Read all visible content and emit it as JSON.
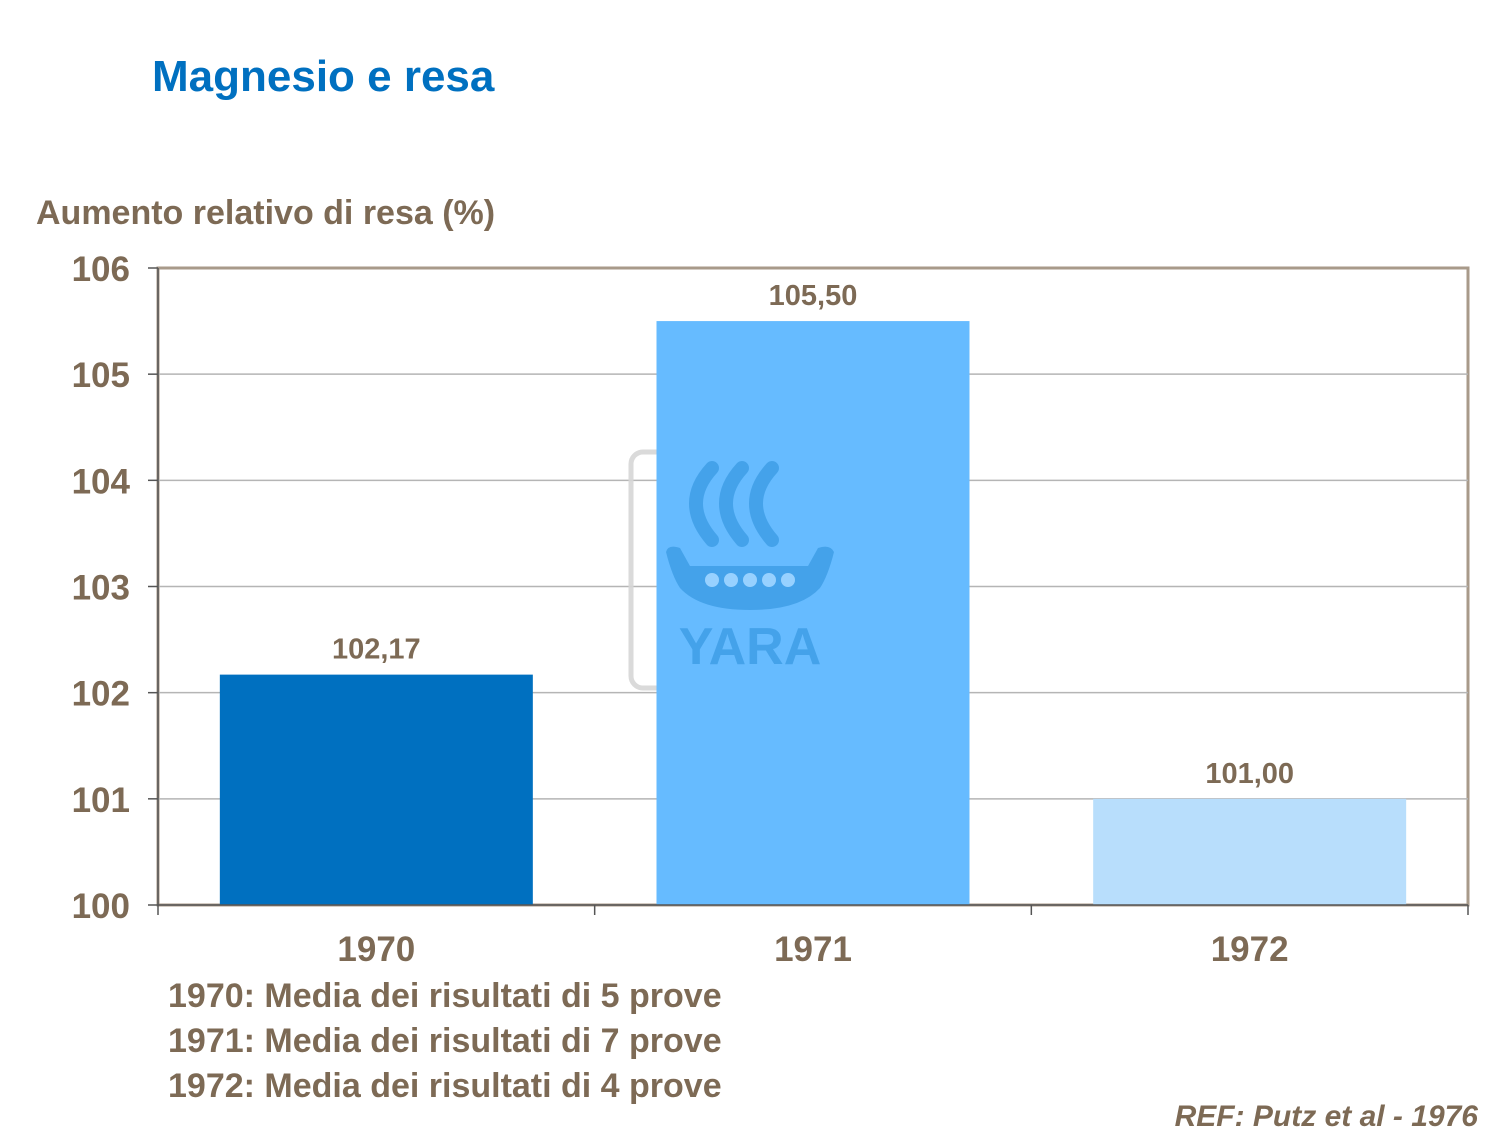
{
  "title": "Magnesio e resa",
  "chart_data": {
    "type": "bar",
    "ylabel": "Aumento relativo di resa (%)",
    "categories": [
      "1970",
      "1971",
      "1972"
    ],
    "values": [
      102.17,
      105.5,
      101.0
    ],
    "data_labels": [
      "102,17",
      "105,50",
      "101,00"
    ],
    "bar_colors": [
      "#0070c0",
      "#66bbff",
      "#b8defc"
    ],
    "ylim": [
      100,
      106
    ],
    "yticks": [
      "100",
      "101",
      "102",
      "103",
      "104",
      "105",
      "106"
    ],
    "grid": true,
    "legend": "none"
  },
  "notes": [
    "1970: Media dei risultati di 5 prove",
    "1971: Media dei risultati di 7 prove",
    "1972: Media dei risultati di 4 prove"
  ],
  "reference": "REF: Putz et al - 1976",
  "watermark": "YARA",
  "colors": {
    "title": "#0070c0",
    "text": "#7d6a55",
    "grid": "#b5b5b5",
    "frame": "#a89a8a"
  }
}
